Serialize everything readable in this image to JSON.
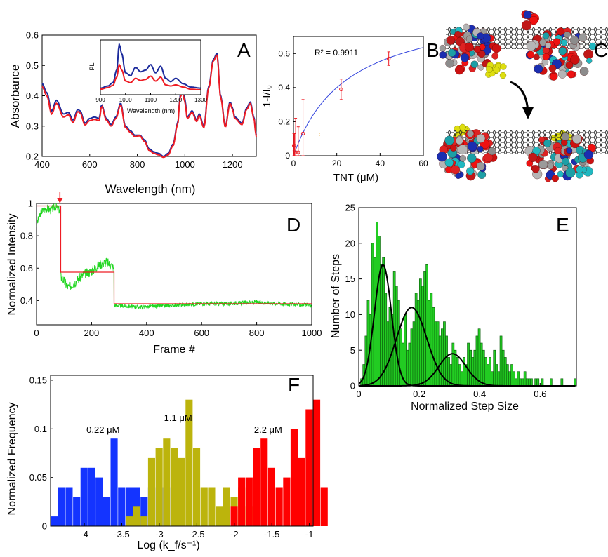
{
  "colors": {
    "blue": "#1b2a9c",
    "red": "#ee1c24",
    "green": "#22d622",
    "gray": "#e8e8e8",
    "yellow": "#e3e62a",
    "darkgreen": "#0e6e0e"
  },
  "panels": {
    "A": {
      "letter": "A",
      "chart_data": {
        "type": "line",
        "xlabel": "Wavelength (nm)",
        "ylabel": "Absorbance",
        "xlim": [
          400,
          1300
        ],
        "ylim": [
          0.2,
          0.6
        ],
        "xticks": [
          400,
          600,
          800,
          1000,
          1200
        ],
        "yticks": [
          0.2,
          0.3,
          0.4,
          0.5,
          0.6
        ],
        "series": [
          {
            "color": "#1b2a9c",
            "x": [
              400,
              420,
              440,
              460,
              490,
              510,
              530,
              550,
              560,
              580,
              600,
              620,
              640,
              650,
              670,
              690,
              710,
              730,
              750,
              770,
              790,
              810,
              830,
              850,
              870,
              890,
              910,
              930,
              950,
              970,
              980,
              990,
              1000,
              1010,
              1030,
              1050,
              1060,
              1080,
              1100,
              1120,
              1135,
              1150,
              1170,
              1190,
              1200,
              1210,
              1240,
              1260,
              1275,
              1290,
              1300
            ],
            "y": [
              0.44,
              0.41,
              0.35,
              0.385,
              0.34,
              0.345,
              0.32,
              0.355,
              0.35,
              0.31,
              0.325,
              0.33,
              0.325,
              0.37,
              0.325,
              0.305,
              0.33,
              0.375,
              0.3,
              0.285,
              0.27,
              0.27,
              0.255,
              0.225,
              0.215,
              0.21,
              0.2,
              0.21,
              0.24,
              0.31,
              0.4,
              0.42,
              0.39,
              0.33,
              0.35,
              0.32,
              0.34,
              0.3,
              0.43,
              0.52,
              0.54,
              0.4,
              0.3,
              0.38,
              0.36,
              0.33,
              0.31,
              0.36,
              0.38,
              0.33,
              0.27
            ]
          },
          {
            "color": "#ee1c24",
            "x": [
              400,
              420,
              440,
              460,
              490,
              510,
              530,
              550,
              560,
              580,
              600,
              620,
              640,
              650,
              670,
              690,
              710,
              730,
              750,
              770,
              790,
              810,
              830,
              850,
              870,
              890,
              910,
              930,
              950,
              970,
              980,
              990,
              1000,
              1010,
              1030,
              1050,
              1060,
              1080,
              1100,
              1120,
              1135,
              1150,
              1170,
              1190,
              1200,
              1210,
              1240,
              1260,
              1275,
              1290,
              1300
            ],
            "y": [
              0.43,
              0.4,
              0.34,
              0.375,
              0.33,
              0.337,
              0.312,
              0.348,
              0.343,
              0.304,
              0.318,
              0.322,
              0.318,
              0.365,
              0.32,
              0.3,
              0.325,
              0.37,
              0.296,
              0.28,
              0.265,
              0.268,
              0.25,
              0.22,
              0.21,
              0.205,
              0.197,
              0.205,
              0.235,
              0.305,
              0.395,
              0.41,
              0.38,
              0.325,
              0.345,
              0.315,
              0.335,
              0.295,
              0.425,
              0.515,
              0.535,
              0.395,
              0.297,
              0.375,
              0.355,
              0.325,
              0.305,
              0.355,
              0.375,
              0.325,
              0.265
            ]
          }
        ]
      },
      "inset": {
        "xlabel": "Wavelength (nm)",
        "ylabel": "PL",
        "xlim": [
          900,
          1300
        ],
        "xticks": [
          900,
          1000,
          1100,
          1200,
          1300
        ],
        "series": [
          {
            "color": "#1b2a9c",
            "x": [
              900,
              930,
              950,
              965,
              975,
              985,
              1000,
              1020,
              1040,
              1060,
              1080,
              1100,
              1120,
              1140,
              1160,
              1180,
              1200,
              1230,
              1260,
              1300
            ],
            "y": [
              0.12,
              0.16,
              0.22,
              0.45,
              0.92,
              0.75,
              0.4,
              0.35,
              0.5,
              0.42,
              0.45,
              0.55,
              0.4,
              0.52,
              0.3,
              0.24,
              0.3,
              0.2,
              0.14,
              0.12
            ]
          },
          {
            "color": "#ee1c24",
            "x": [
              900,
              930,
              950,
              965,
              975,
              985,
              1000,
              1020,
              1040,
              1060,
              1080,
              1100,
              1120,
              1140,
              1160,
              1180,
              1200,
              1230,
              1260,
              1300
            ],
            "y": [
              0.1,
              0.13,
              0.17,
              0.32,
              0.55,
              0.45,
              0.25,
              0.22,
              0.3,
              0.26,
              0.28,
              0.34,
              0.25,
              0.32,
              0.18,
              0.16,
              0.18,
              0.14,
              0.1,
              0.09
            ]
          }
        ]
      }
    },
    "B": {
      "letter": "B",
      "annotation": "R² = 0.9911",
      "chart_data": {
        "type": "scatter",
        "xlabel": "TNT (μM)",
        "ylabel": "1-I/I₀",
        "xlim": [
          0,
          60
        ],
        "ylim": [
          0,
          0.7
        ],
        "xticks": [
          0,
          20,
          40,
          60
        ],
        "yticks": [
          0,
          0.2,
          0.4,
          0.6
        ],
        "points": [
          {
            "x": 0.2,
            "y": 0.06,
            "err": 0.07
          },
          {
            "x": 0.5,
            "y": 0.03,
            "err": 0.1
          },
          {
            "x": 1.0,
            "y": 0.02,
            "err": 0.2
          },
          {
            "x": 2.2,
            "y": 0.02,
            "err": 0.15
          },
          {
            "x": 4.4,
            "y": 0.13,
            "err": 0.2
          },
          {
            "x": 22,
            "y": 0.39,
            "err": 0.06
          },
          {
            "x": 44,
            "y": 0.57,
            "err": 0.04
          }
        ],
        "fit": {
          "vmax": 0.9,
          "k": 25
        }
      }
    },
    "C": {
      "letter": "C"
    },
    "D": {
      "letter": "D",
      "arrow_frame": 85,
      "chart_data": {
        "type": "line",
        "xlabel": "Frame #",
        "ylabel": "Normalized Intensity",
        "xlim": [
          0,
          1000
        ],
        "ylim": [
          0.25,
          1.0
        ],
        "xticks": [
          0,
          200,
          400,
          600,
          800,
          1000
        ],
        "yticks": [
          0.4,
          0.6,
          0.8,
          1.0
        ],
        "ytick_labels": [
          "0.4",
          "0.6",
          "0.8",
          "1"
        ],
        "step_fit": [
          {
            "x0": 0,
            "x1": 88,
            "y": 0.985
          },
          {
            "x0": 88,
            "x1": 282,
            "y": 0.575
          },
          {
            "x0": 282,
            "x1": 1000,
            "y": 0.38
          }
        ],
        "trace_segments": [
          {
            "x0": 0,
            "x1": 88,
            "base": [
              0.87,
              0.95,
              0.97,
              0.96,
              0.98,
              0.95
            ],
            "noise": 0.025
          },
          {
            "x0": 88,
            "x1": 282,
            "base": [
              0.55,
              0.48,
              0.52,
              0.56,
              0.58,
              0.62,
              0.64,
              0.6
            ],
            "noise": 0.03
          },
          {
            "x0": 282,
            "x1": 1000,
            "base": [
              0.37,
              0.36,
              0.37,
              0.38,
              0.38,
              0.39,
              0.38,
              0.37
            ],
            "noise": 0.012
          }
        ]
      }
    },
    "E": {
      "letter": "E",
      "chart_data": {
        "type": "bar",
        "xlabel": "Normalized Step Size",
        "ylabel": "Number of Steps",
        "xlim": [
          0,
          0.72
        ],
        "ylim": [
          0,
          25
        ],
        "xticks": [
          0,
          0.2,
          0.4,
          0.6
        ],
        "yticks": [
          0,
          5,
          10,
          15,
          20,
          25
        ],
        "bin_width": 0.0072,
        "counts": [
          1,
          3,
          7,
          12,
          10,
          20,
          18,
          23,
          21,
          17,
          18,
          13,
          9,
          11,
          10,
          16,
          14,
          12,
          8,
          6,
          10,
          5,
          6,
          8,
          9,
          13,
          12,
          15,
          14,
          16,
          17,
          12,
          13,
          11,
          9,
          9,
          7,
          8,
          9,
          7,
          4,
          3,
          6,
          5,
          4,
          3,
          2,
          4,
          3,
          6,
          5,
          4,
          5,
          7,
          8,
          6,
          5,
          4,
          3,
          4,
          2,
          5,
          3,
          2,
          7,
          5,
          4,
          3,
          2,
          3,
          2,
          1,
          2,
          1,
          1,
          2,
          1,
          1,
          1,
          0,
          1,
          1,
          0,
          1,
          0,
          0,
          0,
          1,
          0,
          0,
          0,
          0,
          1,
          0,
          0,
          0,
          0,
          0,
          1,
          0
        ],
        "fits": [
          {
            "amp": 17,
            "mu": 0.08,
            "sigma": 0.028
          },
          {
            "amp": 11,
            "mu": 0.175,
            "sigma": 0.05
          },
          {
            "amp": 4.5,
            "mu": 0.31,
            "sigma": 0.045
          }
        ]
      }
    },
    "F": {
      "letter": "F",
      "chart_data": {
        "type": "bar",
        "xlabel": "Log (k_f/s⁻¹)",
        "ylabel": "Normalized Frequency",
        "xlim": [
          -4.45,
          -0.95
        ],
        "ylim": [
          0,
          0.155
        ],
        "xticks": [
          -4,
          -3.5,
          -3,
          -2.5,
          -2,
          -1.5,
          -1
        ],
        "yticks": [
          0,
          0.05,
          0.1,
          0.15
        ],
        "bin_width": 0.1,
        "series": [
          {
            "name": "0.22 μM",
            "color": "#1434ff",
            "start": -4.45,
            "values": [
              0.01,
              0.04,
              0.04,
              0.03,
              0.06,
              0.06,
              0.05,
              0.03,
              0.09,
              0.04,
              0.04,
              0.04,
              0.03,
              0.04,
              0.04,
              0.04,
              0.04,
              0.02
            ]
          },
          {
            "name": "1.1 μM",
            "color": "#bcb40c",
            "start": -3.45,
            "values": [
              0.01,
              0.02,
              0.01,
              0.07,
              0.08,
              0.09,
              0.08,
              0.07,
              0.13,
              0.08,
              0.04,
              0.04,
              0.02,
              0.04,
              0.03,
              0.04,
              0.02
            ]
          },
          {
            "name": "2.2 μM",
            "color": "#ff0000",
            "start": -2.05,
            "values": [
              0.02,
              0.05,
              0.05,
              0.08,
              0.09,
              0.06,
              0.04,
              0.05,
              0.1,
              0.07,
              0.12,
              0.13,
              0.04
            ]
          }
        ]
      }
    }
  }
}
